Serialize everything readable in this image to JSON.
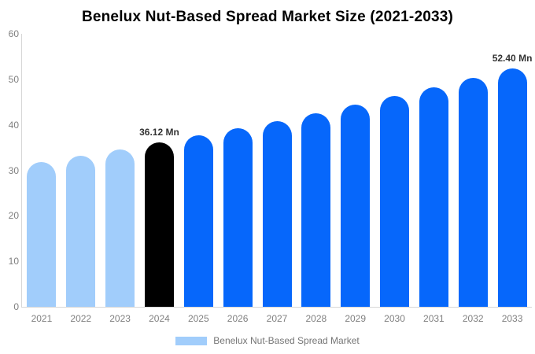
{
  "chart_data": {
    "type": "bar",
    "title": "Benelux Nut-Based Spread Market Size (2021-2033)",
    "unit": "Mn",
    "categories": [
      "2021",
      "2022",
      "2023",
      "2024",
      "2025",
      "2026",
      "2027",
      "2028",
      "2029",
      "2030",
      "2031",
      "2032",
      "2033"
    ],
    "values": [
      31.9,
      33.25,
      34.66,
      36.12,
      37.64,
      39.23,
      40.89,
      42.61,
      44.41,
      46.28,
      48.23,
      50.27,
      52.4
    ],
    "bar_colors": [
      "#a1cdfb",
      "#a1cdfb",
      "#a1cdfb",
      "#000000",
      "#0667fb",
      "#0667fb",
      "#0667fb",
      "#0667fb",
      "#0667fb",
      "#0667fb",
      "#0667fb",
      "#0667fb",
      "#0667fb"
    ],
    "data_labels": [
      "",
      "",
      "",
      "36.12 Mn",
      "",
      "",
      "",
      "",
      "",
      "",
      "",
      "",
      "52.40 Mn"
    ],
    "ylim": [
      0,
      60
    ],
    "yticks": [
      0,
      10,
      20,
      30,
      40,
      50,
      60
    ],
    "grid": false,
    "legend": {
      "label": "Benelux Nut-Based Spread Market",
      "swatch_color": "#a1cdfb",
      "position": "bottom"
    },
    "colors": {
      "historical": "#a1cdfb",
      "highlight_current": "#000000",
      "forecast": "#0667fb",
      "axis_line": "#d6d6d6",
      "tick_text": "#808080",
      "value_label_text": "#333333",
      "title_text": "#000000"
    }
  }
}
